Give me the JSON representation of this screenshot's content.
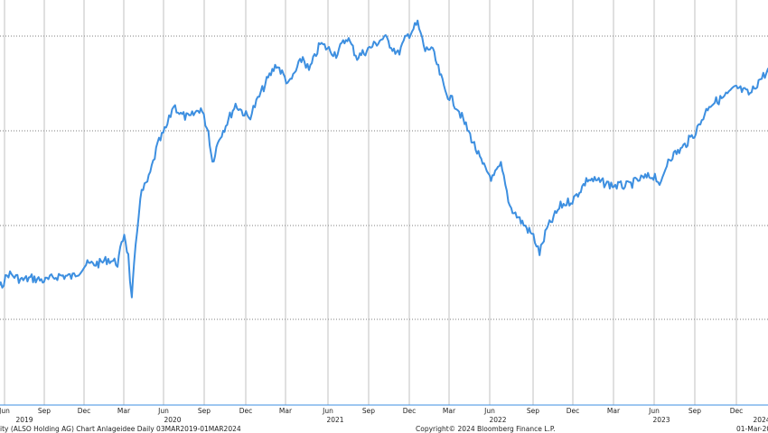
{
  "chart_data": {
    "type": "line",
    "series": [
      {
        "color": "#3d8fe0",
        "x": [
          "2019-03-15",
          "2019-05-01",
          "2019-05-20",
          "2019-06-10",
          "2019-07-10",
          "2019-08-01",
          "2019-09-01",
          "2019-10-01",
          "2019-11-01",
          "2019-12-01",
          "2020-01-01",
          "2020-01-20",
          "2020-02-10",
          "2020-02-25",
          "2020-03-05",
          "2020-03-13",
          "2020-03-18",
          "2020-04-01",
          "2020-04-20",
          "2020-05-10",
          "2020-06-01",
          "2020-06-15",
          "2020-07-01",
          "2020-07-20",
          "2020-08-15",
          "2020-09-01",
          "2020-09-10",
          "2020-09-25",
          "2020-10-10",
          "2020-11-01",
          "2020-12-01",
          "2021-01-10",
          "2021-02-01",
          "2021-03-01",
          "2021-04-01",
          "2021-04-15",
          "2021-05-10",
          "2021-06-15",
          "2021-07-10",
          "2021-08-01",
          "2021-09-01",
          "2021-10-01",
          "2021-11-01",
          "2021-11-20",
          "2021-12-15",
          "2022-01-01",
          "2022-01-15",
          "2022-02-15",
          "2022-03-15",
          "2022-04-15",
          "2022-05-10",
          "2022-06-01",
          "2022-06-20",
          "2022-07-10",
          "2022-08-01",
          "2022-09-01",
          "2022-09-15",
          "2022-10-01",
          "2022-11-01",
          "2022-12-01",
          "2023-01-01",
          "2023-02-01",
          "2023-03-01",
          "2023-04-01",
          "2023-05-01",
          "2023-06-01",
          "2023-06-15",
          "2023-07-01",
          "2023-08-01",
          "2023-09-01",
          "2023-10-01",
          "2023-11-01",
          "2023-12-01",
          "2024-01-01",
          "2024-01-20",
          "2024-02-10",
          "2024-02-20",
          "2024-03-01"
        ],
        "y": [
          0.12,
          0.3,
          0.22,
          0.45,
          0.35,
          0.38,
          0.34,
          0.42,
          0.4,
          0.58,
          0.6,
          0.66,
          0.6,
          1.05,
          0.7,
          0.05,
          0.55,
          1.6,
          1.85,
          2.35,
          2.65,
          2.95,
          2.8,
          2.75,
          2.9,
          2.55,
          2.1,
          2.45,
          2.65,
          2.95,
          2.75,
          3.3,
          3.55,
          3.25,
          3.65,
          3.45,
          3.85,
          3.7,
          3.95,
          3.65,
          3.8,
          3.95,
          3.7,
          3.95,
          4.15,
          3.75,
          3.8,
          3.15,
          2.9,
          2.45,
          2.05,
          1.85,
          2.05,
          1.45,
          1.25,
          1.0,
          0.75,
          1.1,
          1.45,
          1.55,
          1.85,
          1.8,
          1.75,
          1.75,
          1.85,
          1.9,
          1.75,
          2.15,
          2.3,
          2.55,
          2.95,
          3.05,
          3.2,
          3.1,
          3.3,
          3.45,
          3.25,
          2.85
        ]
      }
    ],
    "x_axis": {
      "tick_labels": [
        "Jun",
        "Sep",
        "Dec",
        "Mar",
        "Jun",
        "Sep",
        "Dec",
        "Mar",
        "Jun",
        "Sep",
        "Dec",
        "Mar",
        "Jun",
        "Sep",
        "Dec",
        "Mar",
        "Jun",
        "Sep",
        "Dec",
        "Mar",
        "Jun",
        "Sep",
        "Dec"
      ],
      "year_labels": [
        "2019",
        "2020",
        "2021",
        "2022",
        "2023",
        "2024"
      ]
    },
    "ylim": [
      -1.5,
      4.5
    ],
    "grid": true,
    "legend": "none"
  },
  "footer": {
    "left": "ity (ALSO Holding AG) Chart Anlageidee  Daily 03MAR2019-01MAR2024",
    "center": "Copyright© 2024 Bloomberg Finance L.P.",
    "right": "01-Mar-20"
  }
}
